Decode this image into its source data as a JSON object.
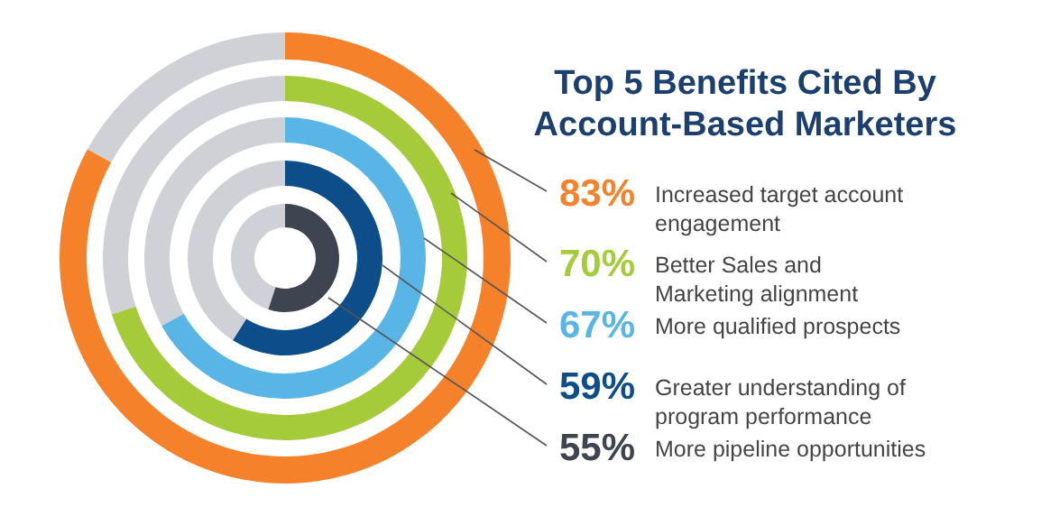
{
  "chart_data": {
    "type": "other",
    "title": "Top 5 Benefits Cited By\nAccount-Based Marketers",
    "categories": [
      "Increased target account\nengagement",
      "Better Sales and\nMarketing alignment",
      "More qualified prospects",
      "Greater understanding of\nprogram performance",
      "More pipeline opportunities"
    ],
    "values": [
      83,
      70,
      67,
      59,
      55
    ],
    "value_labels": [
      "83%",
      "70%",
      "67%",
      "59%",
      "55%"
    ],
    "colors": [
      "#f5822a",
      "#a6cb3a",
      "#58b5e6",
      "#0d4d8a",
      "#3e4450"
    ]
  }
}
